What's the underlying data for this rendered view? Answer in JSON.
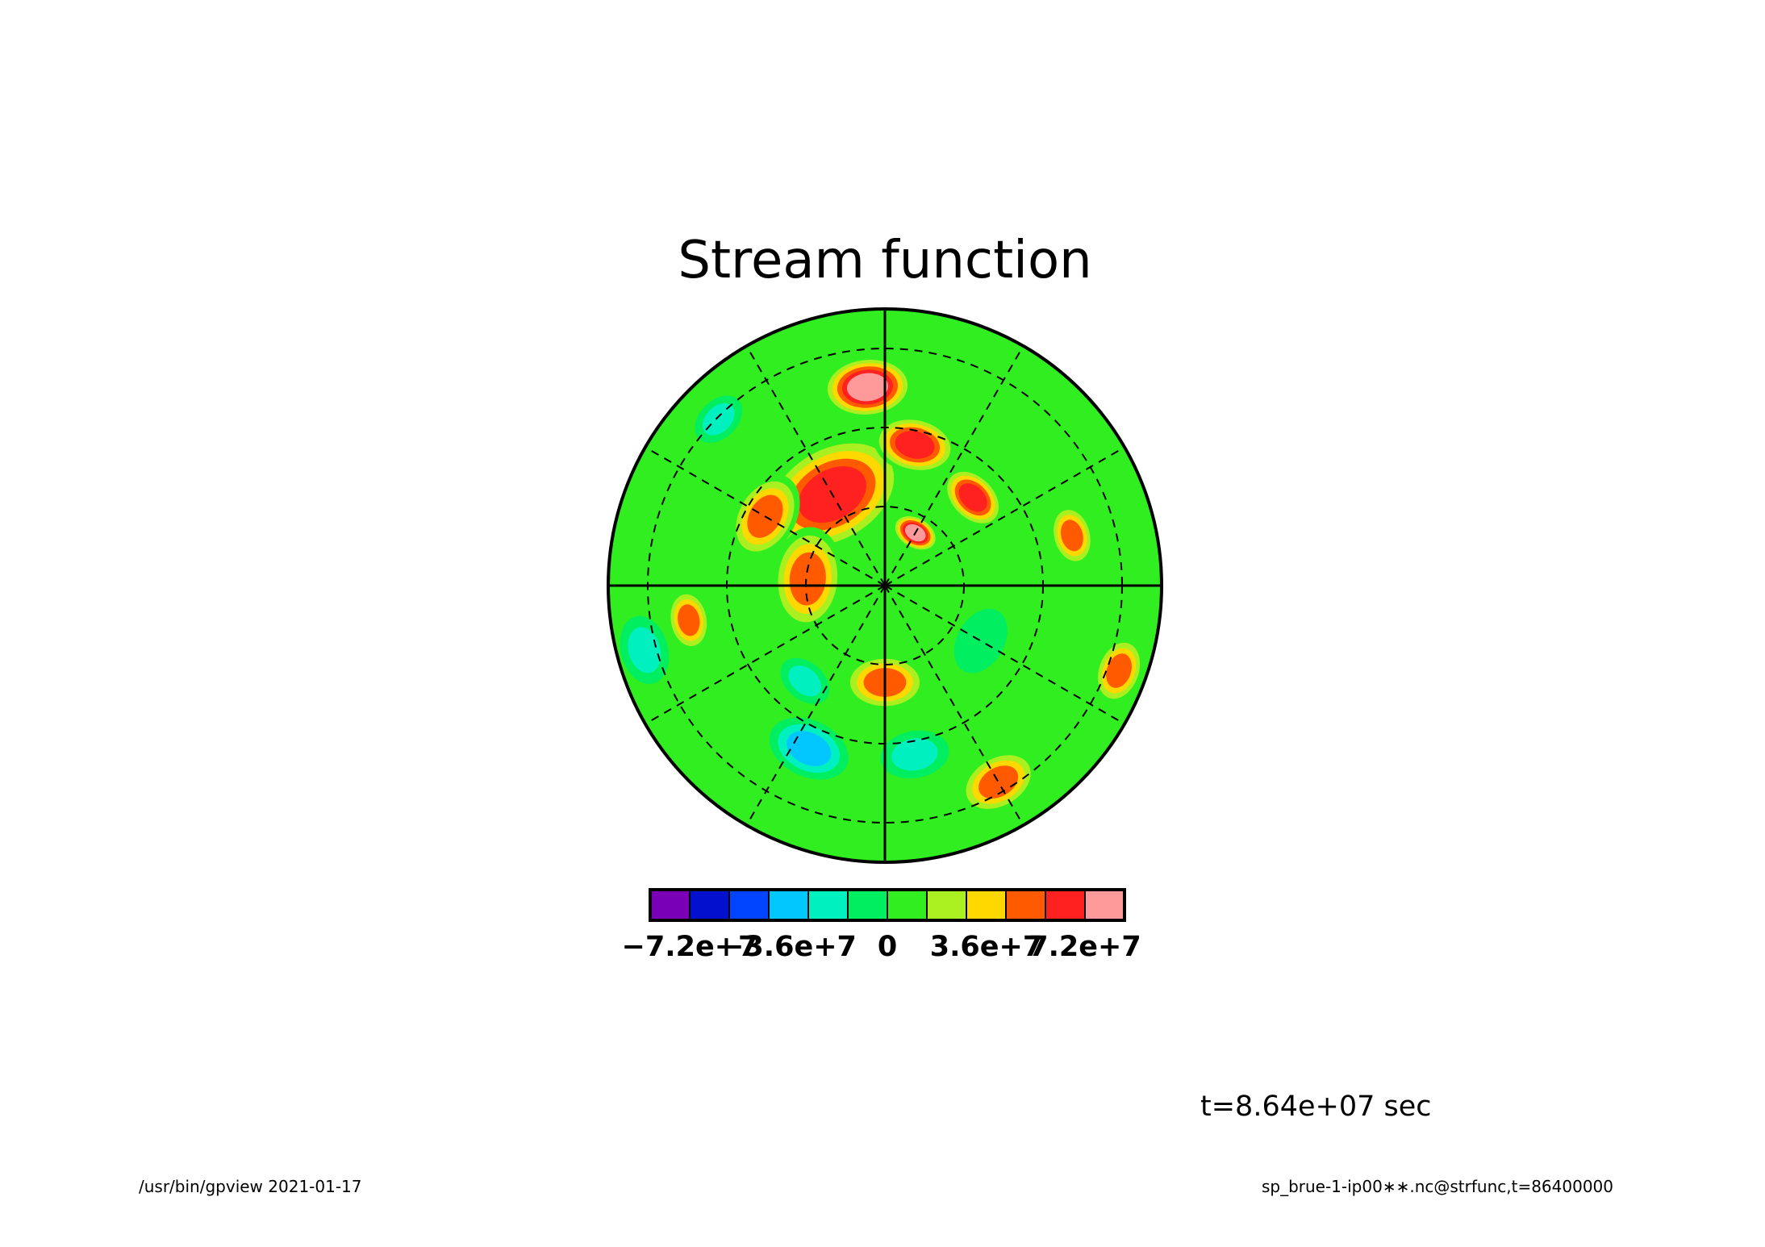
{
  "chart_data": {
    "type": "heatmap",
    "projection": "polar stereographic (hemisphere disk)",
    "title": "Stream function",
    "time_label": "t=8.64e+07 sec",
    "grid": true,
    "meridians_deg": [
      0,
      30,
      60,
      90,
      120,
      150,
      180,
      210,
      240,
      270,
      300,
      330
    ],
    "latitude_circles": 3,
    "colorbar": {
      "levels": [
        -86400000,
        -72000000,
        -57600000,
        -43200000,
        -28800000,
        -14400000,
        0,
        14400000,
        28800000,
        43200000,
        57600000,
        72000000,
        86400000
      ],
      "colors": [
        "#7a00b8",
        "#0010cc",
        "#0044ff",
        "#00c8ff",
        "#00f0c0",
        "#00ee60",
        "#30ee20",
        "#aaf020",
        "#ffd800",
        "#ff5a00",
        "#ff2020",
        "#ff9a9a"
      ],
      "tick_labels": [
        "−7.2e+7",
        "−3.6e+7",
        "0",
        "3.6e+7",
        "7.2e+7"
      ],
      "tick_values": [
        -72000000,
        -36000000,
        0,
        36000000,
        72000000
      ]
    },
    "field_features": [
      {
        "angle_deg": 95,
        "radius_frac": 0.72,
        "value": 72000000,
        "spread_frac": 0.13
      },
      {
        "angle_deg": 120,
        "radius_frac": 0.38,
        "value": 62000000,
        "spread_frac": 0.22
      },
      {
        "angle_deg": 78,
        "radius_frac": 0.52,
        "value": 70000000,
        "spread_frac": 0.12
      },
      {
        "angle_deg": 60,
        "radius_frac": 0.22,
        "value": 86000000,
        "spread_frac": 0.07
      },
      {
        "angle_deg": 150,
        "radius_frac": 0.5,
        "value": 55000000,
        "spread_frac": 0.13
      },
      {
        "angle_deg": 175,
        "radius_frac": 0.28,
        "value": 50000000,
        "spread_frac": 0.15
      },
      {
        "angle_deg": 45,
        "radius_frac": 0.45,
        "value": 58000000,
        "spread_frac": 0.1
      },
      {
        "angle_deg": 270,
        "radius_frac": 0.35,
        "value": 50000000,
        "spread_frac": 0.12
      },
      {
        "angle_deg": 300,
        "radius_frac": 0.82,
        "value": 55000000,
        "spread_frac": 0.12
      },
      {
        "angle_deg": 340,
        "radius_frac": 0.9,
        "value": 50000000,
        "spread_frac": 0.1
      },
      {
        "angle_deg": 15,
        "radius_frac": 0.7,
        "value": 45000000,
        "spread_frac": 0.09
      },
      {
        "angle_deg": 190,
        "radius_frac": 0.72,
        "value": 46000000,
        "spread_frac": 0.09
      },
      {
        "angle_deg": 245,
        "radius_frac": 0.65,
        "value": -30000000,
        "spread_frac": 0.12
      },
      {
        "angle_deg": 195,
        "radius_frac": 0.9,
        "value": -25000000,
        "spread_frac": 0.1
      },
      {
        "angle_deg": 280,
        "radius_frac": 0.62,
        "value": -22000000,
        "spread_frac": 0.1
      },
      {
        "angle_deg": 230,
        "radius_frac": 0.45,
        "value": -20000000,
        "spread_frac": 0.08
      },
      {
        "angle_deg": 135,
        "radius_frac": 0.85,
        "value": -15000000,
        "spread_frac": 0.08
      },
      {
        "angle_deg": 330,
        "radius_frac": 0.4,
        "value": -10000000,
        "spread_frac": 0.1
      }
    ]
  },
  "footer": {
    "left": "/usr/bin/gpview   2021-01-17",
    "right": "sp_brue-1-ip00∗∗.nc@strfunc,t=86400000"
  }
}
